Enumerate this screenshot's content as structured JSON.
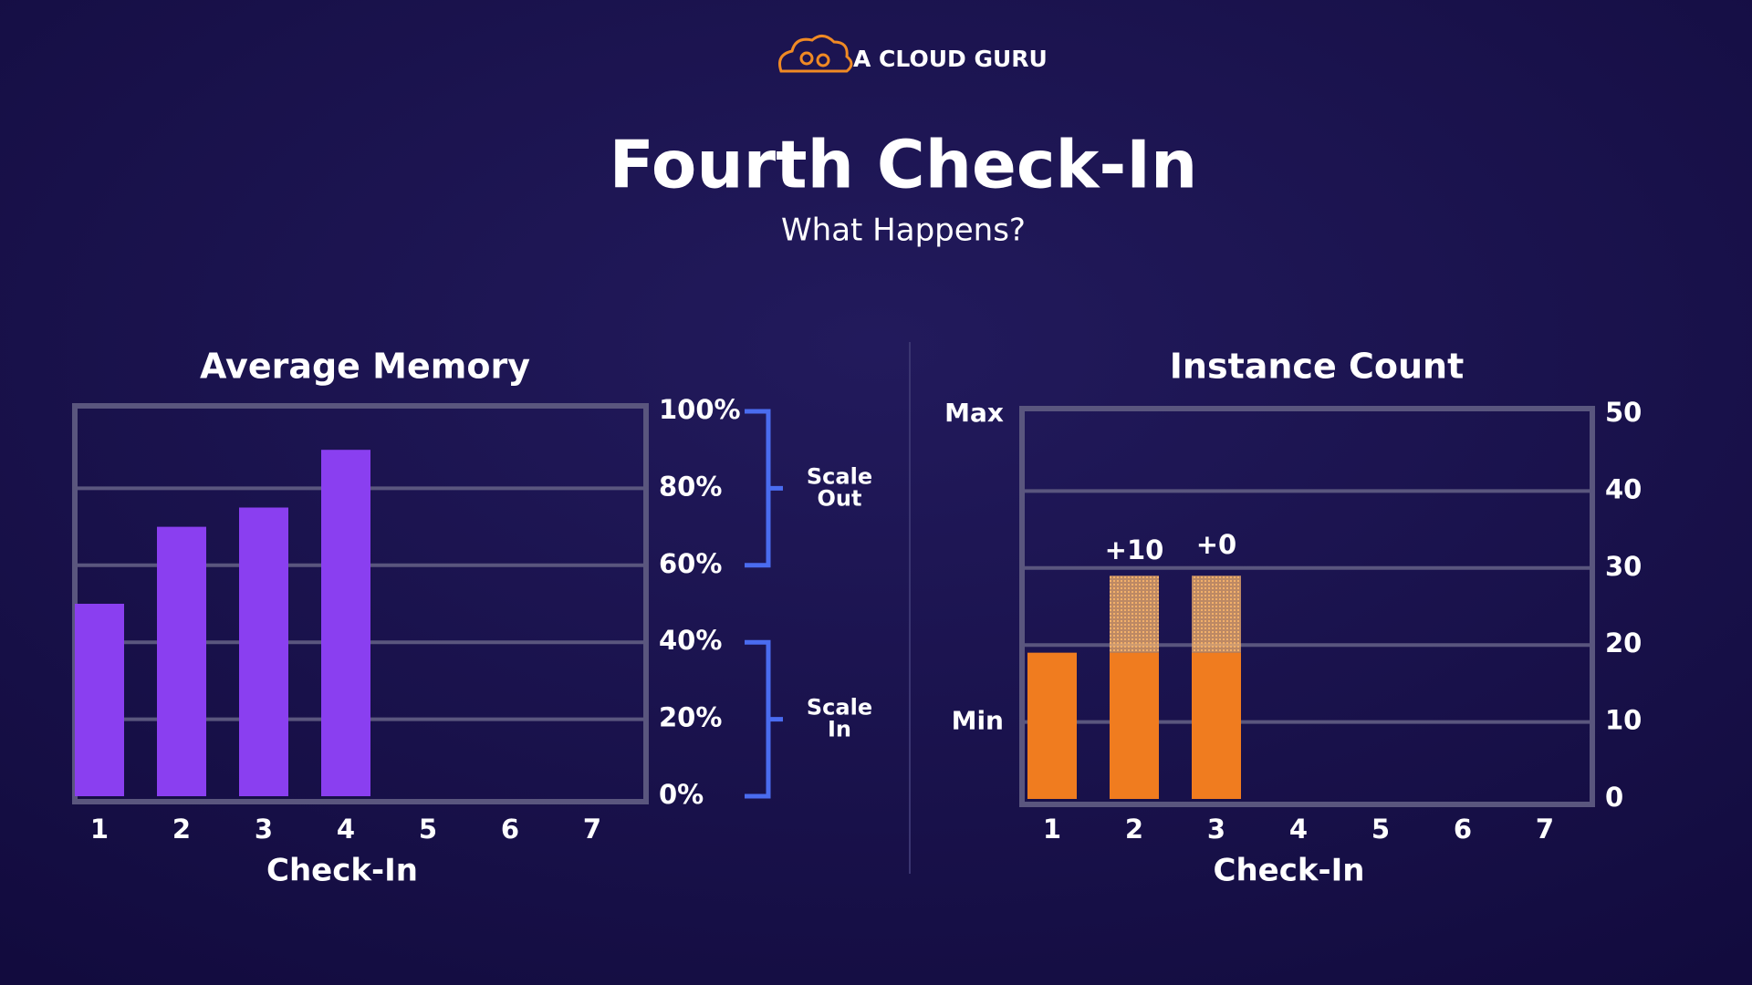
{
  "header": {
    "brand": "A CLOUD GURU",
    "title": "Fourth Check-In",
    "subtitle": "What Happens?"
  },
  "chart_data": [
    {
      "type": "bar",
      "title": "Average Memory",
      "title_color": "#9146f0",
      "x_label": "Check-In",
      "categories": [
        "1",
        "2",
        "3",
        "4",
        "5",
        "6",
        "7"
      ],
      "values": [
        50,
        70,
        75,
        90,
        null,
        null,
        null
      ],
      "color": "#8a3ff0",
      "ylim": [
        0,
        100
      ],
      "yticks": [
        {
          "value": 0,
          "label": "0%"
        },
        {
          "value": 20,
          "label": "20%"
        },
        {
          "value": 40,
          "label": "40%"
        },
        {
          "value": 60,
          "label": "60%"
        },
        {
          "value": 80,
          "label": "80%"
        },
        {
          "value": 100,
          "label": "100%"
        }
      ],
      "grid": true,
      "annotation_color": "#4a6cf0",
      "annotations": [
        {
          "text": "Scale Out",
          "from": 60,
          "to": 100
        },
        {
          "text": "Scale In",
          "from": 0,
          "to": 40
        }
      ]
    },
    {
      "type": "stacked_bar",
      "title": "Instance Count",
      "title_color": "#f07c1f",
      "x_label": "Check-In",
      "categories": [
        "1",
        "2",
        "3",
        "4",
        "5",
        "6",
        "7"
      ],
      "series": [
        {
          "color": "#f07c1f",
          "values": [
            19,
            19,
            19,
            null,
            null,
            null,
            null
          ]
        },
        {
          "color": "#f2b06a",
          "pattern": "hatched",
          "values": [
            null,
            10,
            10,
            null,
            null,
            null,
            null
          ]
        }
      ],
      "ylim": [
        0,
        50
      ],
      "yticks": [
        0,
        10,
        20,
        30,
        40,
        50
      ],
      "grid": true,
      "annotations": [
        {
          "text": "+10",
          "x": "2"
        },
        {
          "text": "+0",
          "x": "3"
        }
      ],
      "side_labels": [
        {
          "value": 50,
          "label": "Max"
        },
        {
          "value": 10,
          "label": "Min"
        }
      ]
    }
  ]
}
